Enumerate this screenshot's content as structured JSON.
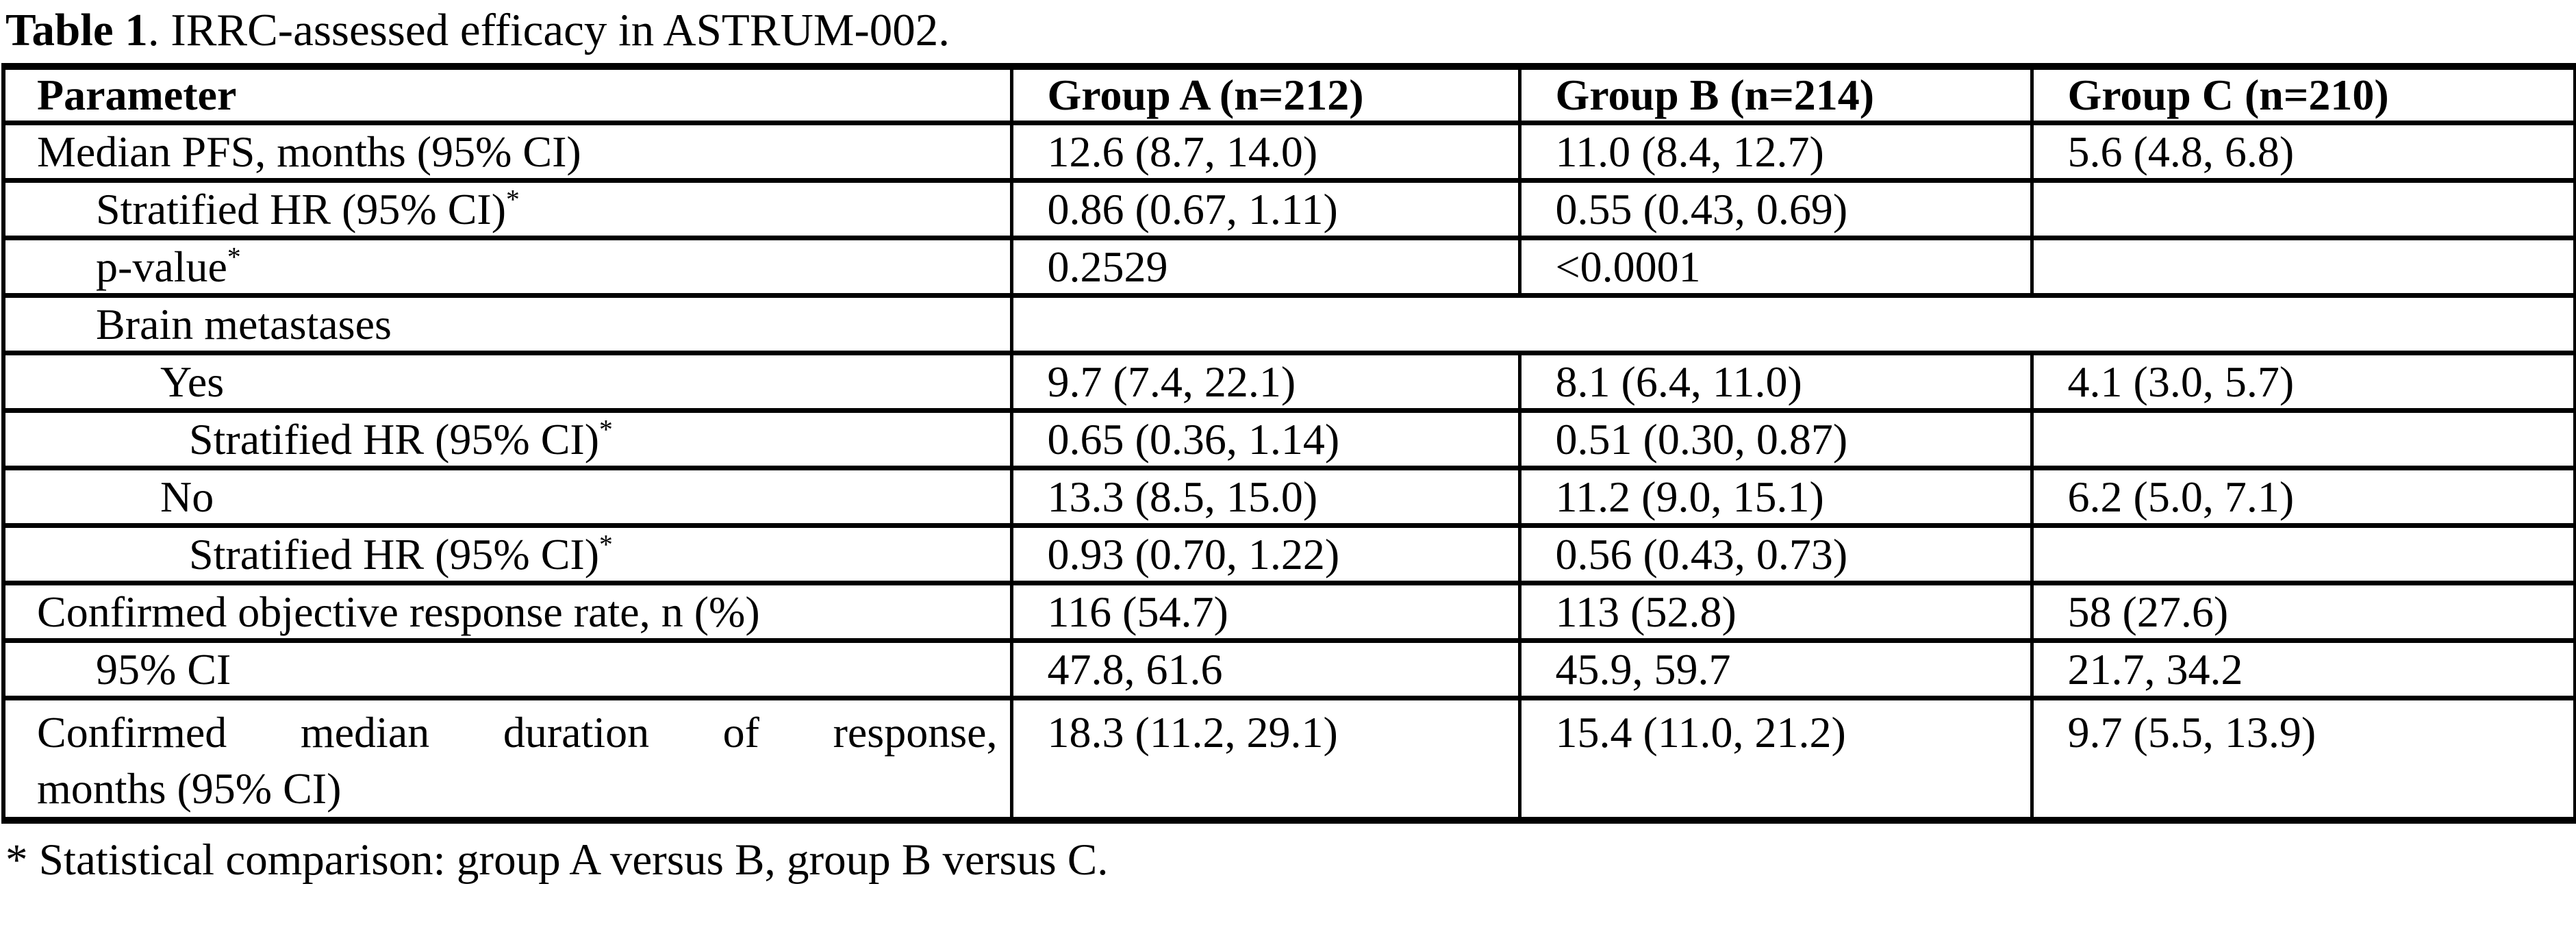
{
  "colors": {
    "background": "#ffffff",
    "text": "#000000",
    "table_border": "#000000"
  },
  "title": {
    "bold": "Table 1",
    "rest": ". IRRC-assessed efficacy in ASTRUM-002."
  },
  "table": {
    "header": {
      "parameter": "Parameter",
      "group_a": "Group A (n=212)",
      "group_b": "Group B (n=214)",
      "group_c": "Group C (n=210)"
    },
    "rows": [
      {
        "param": "Median PFS, months (95% CI)",
        "indent": 0,
        "a": "12.6 (8.7, 14.0)",
        "b": "11.0 (8.4, 12.7)",
        "c": "5.6 (4.8, 6.8)"
      },
      {
        "param": "Stratified HR (95% CI)",
        "sup": "*",
        "indent": 1,
        "a": "0.86 (0.67, 1.11)",
        "b": "0.55 (0.43, 0.69)",
        "c": ""
      },
      {
        "param": "p-value",
        "sup": "*",
        "indent": 1,
        "a": "0.2529",
        "b": "<0.0001",
        "c": ""
      },
      {
        "param": "Brain metastases",
        "indent": 1,
        "merged_empty": true
      },
      {
        "param": "Yes",
        "indent": 2,
        "a": "9.7 (7.4, 22.1)",
        "b": "8.1 (6.4, 11.0)",
        "c": "4.1 (3.0, 5.7)"
      },
      {
        "param": "Stratified HR (95% CI)",
        "sup": "*",
        "indent": 3,
        "a": "0.65 (0.36, 1.14)",
        "b": "0.51 (0.30, 0.87)",
        "c": ""
      },
      {
        "param": "No",
        "indent": 2,
        "a": "13.3 (8.5, 15.0)",
        "b": "11.2 (9.0, 15.1)",
        "c": "6.2 (5.0, 7.1)"
      },
      {
        "param": "Stratified HR (95% CI)",
        "sup": "*",
        "indent": 3,
        "a": "0.93 (0.70, 1.22)",
        "b": "0.56 (0.43, 0.73)",
        "c": ""
      },
      {
        "param": "Confirmed objective response rate, n (%)",
        "indent": 0,
        "a": "116 (54.7)",
        "b": "113 (52.8)",
        "c": "58 (27.6)"
      },
      {
        "param": "95% CI",
        "indent": 1,
        "a": "47.8, 61.6",
        "b": "45.9, 59.7",
        "c": "21.7, 34.2"
      },
      {
        "param_line1": "Confirmed median duration of response,",
        "param_line2": "months (95% CI)",
        "indent": 0,
        "a": "18.3 (11.2, 29.1)",
        "b": "15.4 (11.0, 21.2)",
        "c": "9.7 (5.5, 13.9)"
      }
    ],
    "footnote": "* Statistical comparison: group A versus B, group B versus C."
  }
}
